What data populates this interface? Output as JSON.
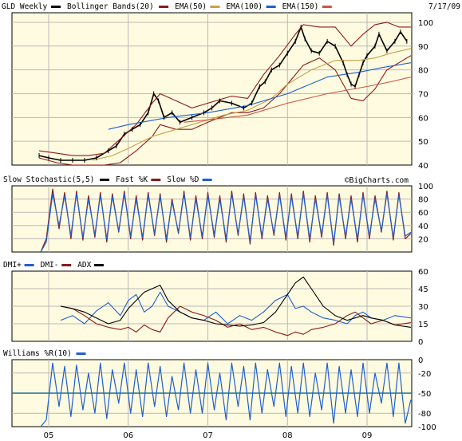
{
  "header": {
    "symbol": "GLD Weekly",
    "date": "7/17/09",
    "watermark": "©BigCharts.com"
  },
  "colors": {
    "price": "#000000",
    "bollinger": "#8b1a1a",
    "ema50": "#8b1a1a",
    "ema100": "#c8a046",
    "ema150": "#1f5fd0",
    "ema_red": "#cc5544",
    "fastk": "#8b1a1a",
    "slowd": "#1f5fd0",
    "dip": "#1f5fd0",
    "dim": "#8b1a1a",
    "adx": "#000000",
    "williams": "#1f5fd0",
    "panel_bg": "#fffbe0",
    "frame": "#000000"
  },
  "chart_data": [
    {
      "type": "line",
      "title": "GLD Weekly",
      "legend": [
        {
          "label": "GLD Weekly",
          "color": "#000000"
        },
        {
          "label": "Bollinger Bands(20)",
          "color": "#8b1a1a"
        },
        {
          "label": "EMA(50)",
          "color": "#c8a046"
        },
        {
          "label": "EMA(100)",
          "color": "#1f5fd0"
        },
        {
          "label": "EMA(150)",
          "color": "#cc5544"
        }
      ],
      "ylim": [
        40,
        104
      ],
      "yticks": [
        40,
        50,
        60,
        70,
        80,
        90,
        100
      ],
      "x_range": [
        2005.0,
        2009.55
      ],
      "x_ticks": [
        {
          "label": "05",
          "x": 2005.0
        },
        {
          "label": "06",
          "x": 2006.0
        },
        {
          "label": "07",
          "x": 2007.0
        },
        {
          "label": "08",
          "x": 2008.0
        },
        {
          "label": "09",
          "x": 2009.0
        }
      ],
      "series": [
        {
          "name": "GLD Weekly",
          "x": [
            2004.88,
            2005.0,
            2005.15,
            2005.3,
            2005.45,
            2005.6,
            2005.75,
            2005.85,
            2005.95,
            2006.05,
            2006.15,
            2006.25,
            2006.32,
            2006.38,
            2006.45,
            2006.55,
            2006.65,
            2006.8,
            2006.95,
            2007.05,
            2007.15,
            2007.3,
            2007.45,
            2007.55,
            2007.65,
            2007.72,
            2007.8,
            2007.9,
            2008.0,
            2008.1,
            2008.17,
            2008.22,
            2008.3,
            2008.4,
            2008.5,
            2008.6,
            2008.7,
            2008.75,
            2008.8,
            2008.85,
            2008.9,
            2008.95,
            2009.0,
            2009.1,
            2009.15,
            2009.25,
            2009.35,
            2009.42,
            2009.5
          ],
          "values": [
            44,
            43,
            42,
            42,
            42,
            43,
            46,
            48,
            53,
            55,
            57,
            62,
            70,
            67,
            60,
            62,
            58,
            60,
            62,
            64,
            67,
            66,
            64,
            66,
            73,
            75,
            80,
            82,
            87,
            92,
            98,
            93,
            88,
            87,
            92,
            90,
            83,
            78,
            74,
            73,
            78,
            83,
            86,
            90,
            95,
            88,
            92,
            96,
            92
          ]
        },
        {
          "name": "Bollinger Upper",
          "x": [
            2004.88,
            2005.1,
            2005.3,
            2005.5,
            2005.7,
            2005.9,
            2006.1,
            2006.3,
            2006.4,
            2006.6,
            2006.8,
            2007.0,
            2007.3,
            2007.5,
            2007.7,
            2007.9,
            2008.1,
            2008.2,
            2008.4,
            2008.6,
            2008.8,
            2008.95,
            2009.1,
            2009.25,
            2009.4,
            2009.55
          ],
          "values": [
            46,
            45,
            44,
            44,
            45,
            51,
            57,
            66,
            70,
            67,
            64,
            66,
            69,
            68,
            78,
            86,
            95,
            99,
            98,
            98,
            90,
            95,
            99,
            100,
            98,
            98
          ]
        },
        {
          "name": "Bollinger Lower",
          "x": [
            2004.88,
            2005.1,
            2005.3,
            2005.5,
            2005.7,
            2005.9,
            2006.1,
            2006.3,
            2006.4,
            2006.6,
            2006.8,
            2007.0,
            2007.3,
            2007.5,
            2007.7,
            2007.9,
            2008.1,
            2008.2,
            2008.4,
            2008.6,
            2008.8,
            2008.95,
            2009.1,
            2009.25,
            2009.4,
            2009.55
          ],
          "values": [
            43,
            41,
            40,
            40,
            40,
            41,
            46,
            52,
            57,
            55,
            55,
            58,
            62,
            62,
            64,
            70,
            78,
            82,
            85,
            80,
            68,
            67,
            72,
            80,
            83,
            86
          ]
        },
        {
          "name": "EMA(50)",
          "x": [
            2005.55,
            2005.8,
            2006.0,
            2006.3,
            2006.6,
            2006.9,
            2007.2,
            2007.5,
            2007.8,
            2008.0,
            2008.3,
            2008.6,
            2008.9,
            2009.1,
            2009.3,
            2009.55
          ],
          "values": [
            42,
            44,
            47,
            52,
            55,
            58,
            61,
            63,
            68,
            74,
            80,
            84,
            84,
            85,
            87,
            89
          ]
        },
        {
          "name": "EMA(100)",
          "x": [
            2005.75,
            2006.0,
            2006.5,
            2007.0,
            2007.5,
            2008.0,
            2008.5,
            2008.9,
            2009.2,
            2009.55
          ],
          "values": [
            55,
            57,
            60,
            62,
            65,
            70,
            77,
            79,
            81,
            83
          ]
        },
        {
          "name": "EMA(150)",
          "x": [
            2006.7,
            2007.0,
            2007.5,
            2008.0,
            2008.5,
            2009.0,
            2009.3,
            2009.55
          ],
          "values": [
            58,
            59,
            61,
            66,
            70,
            73,
            75,
            77
          ]
        }
      ]
    },
    {
      "type": "line",
      "title": "Slow Stochastic(5,5)",
      "legend": [
        {
          "label": "Slow Stochastic(5,5)",
          "color": "#000000"
        },
        {
          "label": "Fast %K",
          "color": "#8b1a1a"
        },
        {
          "label": "Slow %D",
          "color": "#1f5fd0"
        }
      ],
      "ylim": [
        0,
        100
      ],
      "yticks": [
        20,
        40,
        60,
        80,
        100
      ],
      "series": [
        {
          "name": "Fast %K",
          "x": [
            2004.9,
            2004.97,
            2005.05,
            2005.13,
            2005.2,
            2005.28,
            2005.35,
            2005.43,
            2005.5,
            2005.58,
            2005.65,
            2005.73,
            2005.8,
            2005.88,
            2005.95,
            2006.03,
            2006.1,
            2006.18,
            2006.25,
            2006.33,
            2006.4,
            2006.48,
            2006.55,
            2006.63,
            2006.7,
            2006.78,
            2006.85,
            2006.93,
            2007.0,
            2007.08,
            2007.15,
            2007.23,
            2007.3,
            2007.38,
            2007.45,
            2007.53,
            2007.6,
            2007.68,
            2007.75,
            2007.83,
            2007.9,
            2007.98,
            2008.05,
            2008.13,
            2008.2,
            2008.28,
            2008.35,
            2008.43,
            2008.5,
            2008.58,
            2008.65,
            2008.73,
            2008.8,
            2008.88,
            2008.95,
            2009.03,
            2009.1,
            2009.18,
            2009.25,
            2009.33,
            2009.4,
            2009.48,
            2009.55
          ],
          "values": [
            0,
            20,
            95,
            35,
            90,
            20,
            92,
            18,
            85,
            22,
            90,
            15,
            88,
            30,
            92,
            20,
            85,
            18,
            90,
            25,
            88,
            15,
            80,
            28,
            92,
            18,
            85,
            20,
            90,
            22,
            85,
            15,
            92,
            25,
            88,
            12,
            90,
            20,
            85,
            25,
            90,
            18,
            88,
            20,
            92,
            15,
            85,
            22,
            90,
            10,
            88,
            20,
            85,
            15,
            90,
            20,
            85,
            30,
            92,
            18,
            90,
            20,
            28
          ]
        },
        {
          "name": "Slow %D",
          "x": [
            2004.9,
            2004.97,
            2005.05,
            2005.13,
            2005.2,
            2005.28,
            2005.35,
            2005.43,
            2005.5,
            2005.58,
            2005.65,
            2005.73,
            2005.8,
            2005.88,
            2005.95,
            2006.03,
            2006.1,
            2006.18,
            2006.25,
            2006.33,
            2006.4,
            2006.48,
            2006.55,
            2006.63,
            2006.7,
            2006.78,
            2006.85,
            2006.93,
            2007.0,
            2007.08,
            2007.15,
            2007.23,
            2007.3,
            2007.38,
            2007.45,
            2007.53,
            2007.6,
            2007.68,
            2007.75,
            2007.83,
            2007.9,
            2007.98,
            2008.05,
            2008.13,
            2008.2,
            2008.28,
            2008.35,
            2008.43,
            2008.5,
            2008.58,
            2008.65,
            2008.73,
            2008.8,
            2008.88,
            2008.95,
            2009.03,
            2009.1,
            2009.18,
            2009.25,
            2009.33,
            2009.4,
            2009.48,
            2009.55
          ],
          "values": [
            0,
            15,
            88,
            40,
            85,
            25,
            88,
            22,
            80,
            26,
            86,
            20,
            84,
            32,
            88,
            24,
            80,
            22,
            86,
            28,
            84,
            20,
            76,
            30,
            88,
            22,
            80,
            24,
            86,
            26,
            80,
            20,
            88,
            28,
            84,
            16,
            86,
            24,
            80,
            28,
            86,
            22,
            84,
            24,
            88,
            20,
            80,
            26,
            86,
            14,
            84,
            24,
            80,
            20,
            86,
            24,
            80,
            32,
            88,
            22,
            86,
            24,
            30
          ]
        }
      ]
    },
    {
      "type": "line",
      "title": "DMI",
      "legend": [
        {
          "label": "DMI+",
          "color": "#1f5fd0"
        },
        {
          "label": "DMI-",
          "color": "#8b1a1a"
        },
        {
          "label": "ADX",
          "color": "#000000"
        }
      ],
      "ylim": [
        0,
        60
      ],
      "yticks": [
        0,
        15,
        30,
        45,
        60
      ],
      "series": [
        {
          "name": "DMI+",
          "x": [
            2005.15,
            2005.3,
            2005.45,
            2005.6,
            2005.75,
            2005.9,
            2006.0,
            2006.1,
            2006.2,
            2006.3,
            2006.4,
            2006.5,
            2006.65,
            2006.8,
            2006.95,
            2007.1,
            2007.25,
            2007.4,
            2007.55,
            2007.7,
            2007.85,
            2008.0,
            2008.1,
            2008.2,
            2008.3,
            2008.45,
            2008.6,
            2008.75,
            2008.85,
            2008.95,
            2009.05,
            2009.2,
            2009.35,
            2009.55
          ],
          "values": [
            18,
            22,
            15,
            26,
            33,
            22,
            35,
            40,
            25,
            30,
            42,
            30,
            25,
            20,
            18,
            25,
            15,
            22,
            18,
            25,
            35,
            40,
            28,
            30,
            25,
            20,
            18,
            15,
            22,
            25,
            20,
            18,
            22,
            20
          ]
        },
        {
          "name": "DMI-",
          "x": [
            2005.15,
            2005.3,
            2005.45,
            2005.6,
            2005.75,
            2005.9,
            2006.0,
            2006.1,
            2006.2,
            2006.3,
            2006.4,
            2006.5,
            2006.65,
            2006.8,
            2006.95,
            2007.1,
            2007.25,
            2007.4,
            2007.55,
            2007.7,
            2007.85,
            2008.0,
            2008.1,
            2008.2,
            2008.3,
            2008.45,
            2008.6,
            2008.75,
            2008.85,
            2008.95,
            2009.05,
            2009.2,
            2009.35,
            2009.55
          ],
          "values": [
            30,
            28,
            22,
            15,
            12,
            10,
            12,
            8,
            14,
            10,
            8,
            20,
            30,
            25,
            22,
            18,
            12,
            15,
            10,
            12,
            8,
            5,
            8,
            6,
            10,
            12,
            15,
            22,
            25,
            20,
            15,
            18,
            14,
            16
          ]
        },
        {
          "name": "ADX",
          "x": [
            2005.15,
            2005.3,
            2005.45,
            2005.6,
            2005.75,
            2005.9,
            2006.0,
            2006.1,
            2006.2,
            2006.3,
            2006.4,
            2006.5,
            2006.65,
            2006.8,
            2006.95,
            2007.1,
            2007.25,
            2007.4,
            2007.55,
            2007.7,
            2007.85,
            2008.0,
            2008.1,
            2008.2,
            2008.3,
            2008.45,
            2008.6,
            2008.75,
            2008.85,
            2008.95,
            2009.05,
            2009.2,
            2009.35,
            2009.55
          ],
          "values": [
            30,
            28,
            25,
            20,
            15,
            18,
            28,
            35,
            42,
            45,
            48,
            35,
            25,
            20,
            18,
            15,
            14,
            13,
            14,
            16,
            25,
            40,
            50,
            55,
            45,
            30,
            22,
            18,
            20,
            22,
            20,
            18,
            14,
            12
          ]
        }
      ]
    },
    {
      "type": "line",
      "title": "Williams %R(10)",
      "legend": [
        {
          "label": "Williams %R(10)",
          "color": "#1f5fd0"
        }
      ],
      "ylim": [
        -100,
        0
      ],
      "yticks": [
        -100,
        -80,
        -50,
        -20,
        0
      ],
      "reference_line": -50,
      "series": [
        {
          "name": "Williams %R(10)",
          "x": [
            2004.9,
            2004.97,
            2005.05,
            2005.13,
            2005.2,
            2005.28,
            2005.35,
            2005.43,
            2005.5,
            2005.58,
            2005.65,
            2005.73,
            2005.8,
            2005.88,
            2005.95,
            2006.03,
            2006.1,
            2006.18,
            2006.25,
            2006.33,
            2006.4,
            2006.48,
            2006.55,
            2006.63,
            2006.7,
            2006.78,
            2006.85,
            2006.93,
            2007.0,
            2007.08,
            2007.15,
            2007.23,
            2007.3,
            2007.38,
            2007.45,
            2007.53,
            2007.6,
            2007.68,
            2007.75,
            2007.83,
            2007.9,
            2007.98,
            2008.05,
            2008.13,
            2008.2,
            2008.28,
            2008.35,
            2008.43,
            2008.5,
            2008.58,
            2008.65,
            2008.73,
            2008.8,
            2008.88,
            2008.95,
            2009.03,
            2009.1,
            2009.18,
            2009.25,
            2009.33,
            2009.4,
            2009.48,
            2009.55
          ],
          "values": [
            -100,
            -90,
            -5,
            -70,
            -10,
            -85,
            -8,
            -75,
            -20,
            -80,
            -5,
            -88,
            -15,
            -65,
            -5,
            -80,
            -15,
            -85,
            -5,
            -70,
            -10,
            -85,
            -25,
            -75,
            -5,
            -80,
            -15,
            -80,
            -5,
            -75,
            -20,
            -90,
            -5,
            -70,
            -10,
            -90,
            -5,
            -80,
            -15,
            -70,
            -5,
            -85,
            -10,
            -80,
            -5,
            -85,
            -20,
            -75,
            -5,
            -95,
            -10,
            -80,
            -15,
            -85,
            -5,
            -80,
            -20,
            -65,
            -5,
            -85,
            -5,
            -95,
            -60
          ]
        }
      ]
    }
  ]
}
